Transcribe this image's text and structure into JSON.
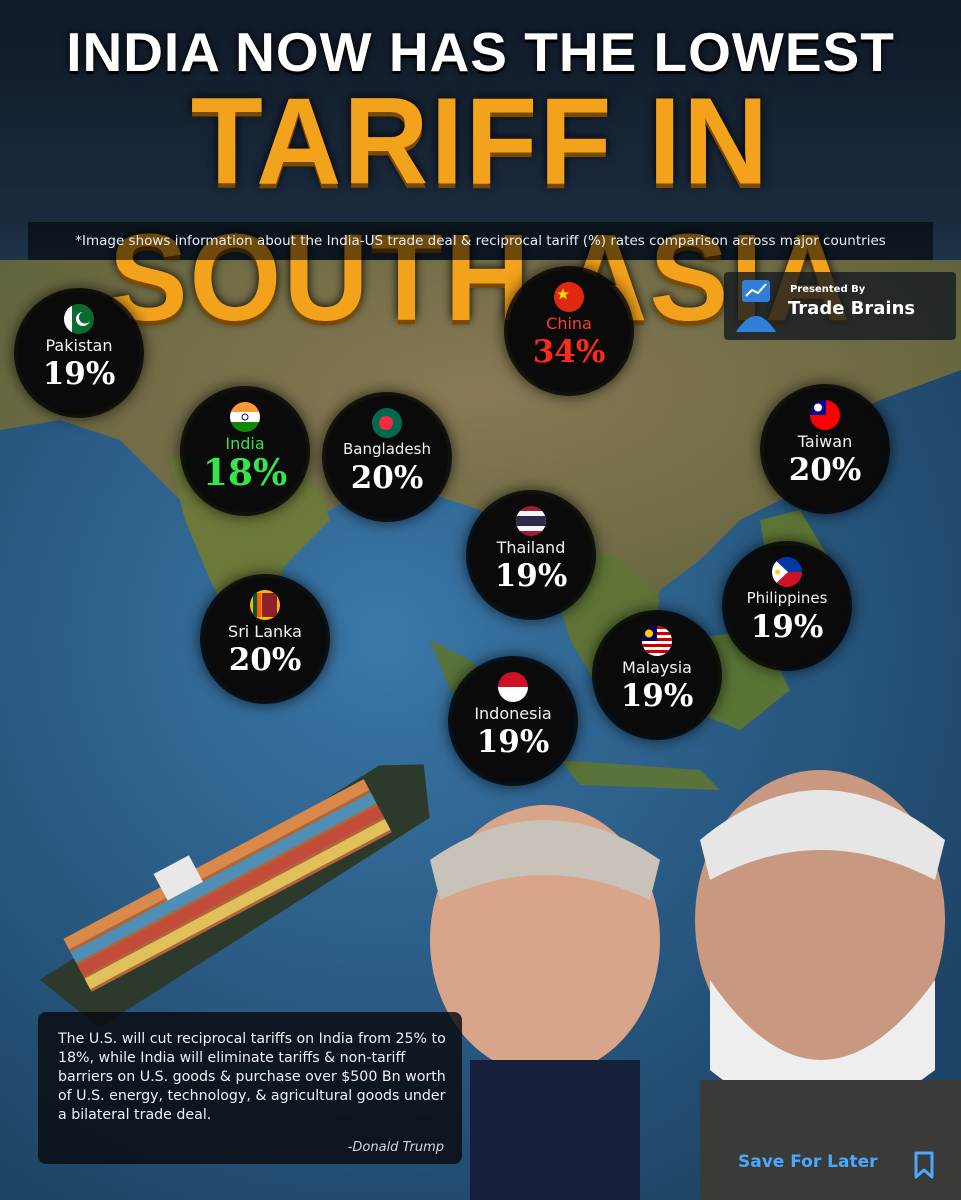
{
  "header": {
    "line1": "INDIA NOW HAS THE LOWEST",
    "line2": "TARIFF IN SOUTH ASIA",
    "note": "*Image shows information about the India-US trade deal & reciprocal tariff (%) rates comparison across major countries"
  },
  "brand": {
    "pre": "Presented By",
    "name": "Trade Brains"
  },
  "countries": [
    {
      "name": "Pakistan",
      "value": "19%",
      "highlight": "none"
    },
    {
      "name": "China",
      "value": "34%",
      "highlight": "red"
    },
    {
      "name": "India",
      "value": "18%",
      "highlight": "green"
    },
    {
      "name": "Bangladesh",
      "value": "20%",
      "highlight": "none"
    },
    {
      "name": "Taiwan",
      "value": "20%",
      "highlight": "none"
    },
    {
      "name": "Thailand",
      "value": "19%",
      "highlight": "none"
    },
    {
      "name": "Philippines",
      "value": "19%",
      "highlight": "none"
    },
    {
      "name": "Sri Lanka",
      "value": "20%",
      "highlight": "none"
    },
    {
      "name": "Malaysia",
      "value": "19%",
      "highlight": "none"
    },
    {
      "name": "Indonesia",
      "value": "19%",
      "highlight": "none"
    }
  ],
  "quote": {
    "text": "The U.S. will cut reciprocal tariffs on India from 25% to 18%, while India will eliminate tariffs & non-tariff barriers on U.S. goods & purchase over $500 Bn worth of U.S. energy, technology, & agricultural goods under a bilateral trade deal.",
    "author": "-Donald Trump"
  },
  "footer": {
    "save_label": "Save For Later"
  },
  "colors": {
    "title_accent": "#f3a21b",
    "india_green": "#35e64a",
    "china_red": "#ff2a1a",
    "save_blue": "#4aa8ff"
  }
}
